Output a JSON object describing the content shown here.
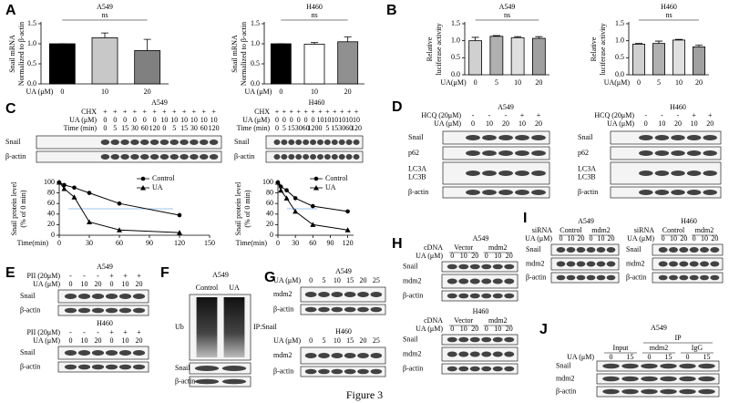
{
  "chart_data": [
    {
      "type": "bar",
      "title": "A549",
      "ylabel": [
        "Snail mRNA",
        "Normalized to β-actin"
      ],
      "xlabel": "UA (μM)",
      "categories": [
        "0",
        "10",
        "20"
      ],
      "values": [
        1.0,
        1.15,
        0.83
      ],
      "errors": [
        0,
        0.12,
        0.28
      ],
      "colors": [
        "#000000",
        "#c8c8c8",
        "#808080"
      ],
      "ylim": [
        0,
        1.5
      ],
      "yticks": [
        {
          "value": 0,
          "label": "0.0"
        },
        {
          "value": 0.5,
          "label": "0.5"
        },
        {
          "value": 1,
          "label": "1.0"
        },
        {
          "value": 1.5,
          "label": "1.5"
        }
      ],
      "annotation": "ns"
    },
    {
      "type": "bar",
      "title": "H460",
      "ylabel": [
        "Snail mRNA",
        "Normalized to β-actin"
      ],
      "xlabel": "UA (μM)",
      "categories": [
        "0",
        "10",
        "20"
      ],
      "values": [
        1.0,
        0.99,
        1.05
      ],
      "errors": [
        0,
        0.04,
        0.12
      ],
      "colors": [
        "#000000",
        "#ffffff",
        "#909090"
      ],
      "ylim": [
        0,
        1.5
      ],
      "yticks": [
        {
          "value": 0,
          "label": "0.0"
        },
        {
          "value": 0.5,
          "label": "0.5"
        },
        {
          "value": 1,
          "label": "1.0"
        },
        {
          "value": 1.5,
          "label": "1.5"
        }
      ],
      "annotation": "ns"
    },
    {
      "type": "bar",
      "title": "A549",
      "ylabel": [
        "Relative",
        "luciferase activity"
      ],
      "xlabel": "UA(μM)",
      "categories": [
        "0",
        "5",
        "10",
        "20"
      ],
      "values": [
        1.0,
        1.13,
        1.09,
        1.07
      ],
      "errors": [
        0.1,
        0.02,
        0.03,
        0.05
      ],
      "colors": [
        "#d0d0d0",
        "#b0b0b0",
        "#e0e0e0",
        "#a0a0a0"
      ],
      "ylim": [
        0,
        1.5
      ],
      "yticks": [
        {
          "value": 0,
          "label": "0.0"
        },
        {
          "value": 0.5,
          "label": "0.5"
        },
        {
          "value": 1,
          "label": "1.0"
        },
        {
          "value": 1.5,
          "label": "1.5"
        }
      ],
      "annotation": "ns"
    },
    {
      "type": "bar",
      "title": "H460",
      "ylabel": [
        "Relative",
        "luciferase activity"
      ],
      "xlabel": "UA(μM)",
      "categories": [
        "0",
        "5",
        "10",
        "20"
      ],
      "values": [
        0.9,
        0.92,
        1.02,
        0.82
      ],
      "errors": [
        0.02,
        0.07,
        0.02,
        0.05
      ],
      "colors": [
        "#d0d0d0",
        "#b0b0b0",
        "#e0e0e0",
        "#a0a0a0"
      ],
      "ylim": [
        0,
        1.5
      ],
      "yticks": [
        {
          "value": 0,
          "label": "0.0"
        },
        {
          "value": 0.5,
          "label": "0.5"
        },
        {
          "value": 1,
          "label": "1.0"
        },
        {
          "value": 1.5,
          "label": "1.5"
        }
      ],
      "annotation": "ns"
    },
    {
      "type": "line",
      "ylabel": [
        "Snail protein level",
        "(% of 0 min)"
      ],
      "xlabel": "Time(min)",
      "x": [
        0,
        5,
        15,
        30,
        60,
        120
      ],
      "series": [
        {
          "name": "Control",
          "color": "#000000",
          "marker": "circle",
          "values": [
            100,
            95,
            90,
            80,
            60,
            38
          ]
        },
        {
          "name": "UA",
          "color": "#000000",
          "marker": "triangle",
          "values": [
            100,
            88,
            72,
            25,
            10,
            5
          ]
        }
      ],
      "xlim": [
        0,
        150
      ],
      "xticks": [
        0,
        30,
        60,
        90,
        120,
        150
      ],
      "ylim": [
        0,
        100
      ],
      "yticks": [
        0,
        20,
        40,
        60,
        80,
        100
      ]
    },
    {
      "type": "line",
      "ylabel": [
        "Snail protein level",
        "(% of 0 min)"
      ],
      "xlabel": "Time(min)",
      "x": [
        0,
        5,
        15,
        30,
        60,
        120
      ],
      "series": [
        {
          "name": "Control",
          "color": "#000000",
          "marker": "circle",
          "values": [
            100,
            92,
            85,
            70,
            55,
            45
          ]
        },
        {
          "name": "UA",
          "color": "#000000",
          "marker": "triangle",
          "values": [
            100,
            85,
            70,
            45,
            20,
            10
          ]
        }
      ],
      "xlim": [
        0,
        130
      ],
      "xticks": [
        0,
        30,
        60,
        90,
        120
      ],
      "ylim": [
        0,
        100
      ],
      "yticks": [
        0,
        20,
        40,
        60,
        80,
        100
      ]
    }
  ],
  "figure": {
    "letters": [
      "A",
      "B",
      "C",
      "D",
      "E",
      "F",
      "G",
      "H",
      "I",
      "J"
    ],
    "caption": "Figure 3",
    "blots": [
      {
        "title": "A549",
        "conds": [
          {
            "label": "CHX",
            "lanes": [
              "+",
              "+",
              "+",
              "+",
              "+",
              "+",
              "+",
              "+",
              "+",
              "+",
              "+",
              "+"
            ]
          },
          {
            "label": "UA (μM)",
            "lanes": [
              "0",
              "0",
              "0",
              "0",
              "0",
              "0",
              "10",
              "10",
              "10",
              "10",
              "10",
              "10"
            ]
          },
          {
            "label": "Time (min)",
            "lanes": [
              "0",
              "5",
              "15",
              "30",
              "60",
              "120",
              "0",
              "5",
              "15",
              "30",
              "60",
              "120"
            ]
          }
        ],
        "bands": [
          "Snail",
          "β-actin"
        ]
      },
      {
        "title": "H460",
        "conds": [
          {
            "label": "CHX",
            "lanes": [
              "+",
              "+",
              "+",
              "+",
              "+",
              "+",
              "+",
              "+",
              "+",
              "+",
              "+",
              "+"
            ]
          },
          {
            "label": "UA (μM)",
            "lanes": [
              "0",
              "0",
              "0",
              "0",
              "0",
              "0",
              "10",
              "10",
              "10",
              "10",
              "10",
              "10"
            ]
          },
          {
            "label": "Time (min)",
            "lanes": [
              "0",
              "5",
              "15",
              "30",
              "60",
              "120",
              "0",
              "5",
              "15",
              "30",
              "60",
              "120"
            ]
          }
        ],
        "bands": [
          "Snail",
          "β-actin"
        ]
      },
      {
        "title": "A549",
        "conds": [
          {
            "label": "HCQ (20μM)",
            "lanes": [
              "-",
              "-",
              "-",
              "+",
              "+"
            ]
          },
          {
            "label": "UA (μM)",
            "lanes": [
              "0",
              "10",
              "20",
              "10",
              "20"
            ]
          }
        ],
        "bands": [
          "Snail",
          "p62",
          [
            "LC3A",
            "LC3B"
          ],
          "β-actin"
        ]
      },
      {
        "title": "H460",
        "conds": [
          {
            "label": "HCQ (20μM)",
            "lanes": [
              "-",
              "-",
              "-",
              "+",
              "+"
            ]
          },
          {
            "label": "UA (μM)",
            "lanes": [
              "0",
              "10",
              "20",
              "10",
              "20"
            ]
          }
        ],
        "bands": [
          "Snail",
          "p62",
          [
            "LC3A",
            "LC3B"
          ],
          "β-actin"
        ]
      },
      {
        "title": "A549",
        "conds": [
          {
            "label": "PII (20μM)",
            "lanes": [
              "-",
              "-",
              "-",
              "+",
              "+",
              "+"
            ]
          },
          {
            "label": "UA (μM)",
            "lanes": [
              "0",
              "10",
              "20",
              "0",
              "10",
              "20"
            ]
          }
        ],
        "bands": [
          "Snail",
          "β-actin"
        ]
      },
      {
        "title": "H460",
        "conds": [
          {
            "label": "PII (20μM)",
            "lanes": [
              "-",
              "-",
              "-",
              "+",
              "+",
              "+"
            ]
          },
          {
            "label": "UA (μM)",
            "lanes": [
              "0",
              "10",
              "20",
              "0",
              "10",
              "20"
            ]
          }
        ],
        "bands": [
          "Snail",
          "β-actin"
        ]
      },
      {
        "title": "A549",
        "conds": [
          {
            "lanes": [
              "Control",
              "UA"
            ]
          }
        ],
        "bands": [
          "Ub",
          "Snail",
          "β-actin"
        ],
        "side": "IP:Snail"
      },
      {
        "title": "A549",
        "conds": [
          {
            "label": "UA (μM)",
            "lanes": [
              "0",
              "5",
              "10",
              "15",
              "20",
              "25"
            ]
          }
        ],
        "bands": [
          "mdm2",
          "β-actin"
        ]
      },
      {
        "title": "H460",
        "conds": [
          {
            "label": "UA (μM)",
            "lanes": [
              "0",
              "5",
              "10",
              "15",
              "20",
              "25"
            ]
          }
        ],
        "bands": [
          "mdm2",
          "β-actin"
        ]
      },
      {
        "title": "A549",
        "conds": [
          {
            "label": "cDNA",
            "groups": [
              "Vector",
              "mdm2"
            ]
          },
          {
            "label": "UA (μM)",
            "lanes": [
              "0",
              "10",
              "20",
              "0",
              "10",
              "20"
            ]
          }
        ],
        "bands": [
          "Snail",
          "mdm2",
          "β-actin"
        ]
      },
      {
        "title": "H460",
        "conds": [
          {
            "label": "cDNA",
            "groups": [
              "Vector",
              "mdm2"
            ]
          },
          {
            "label": "UA (μM)",
            "lanes": [
              "0",
              "10",
              "20",
              "0",
              "10",
              "20"
            ]
          }
        ],
        "bands": [
          "Snail",
          "mdm2",
          "β-actin"
        ]
      },
      {
        "title": "A549",
        "conds": [
          {
            "label": "siRNA",
            "groups": [
              "Control",
              "mdm2"
            ]
          },
          {
            "label": "UA (μM)",
            "lanes": [
              "0",
              "10",
              "20",
              "0",
              "10",
              "20"
            ]
          }
        ],
        "bands": [
          "Snail",
          "mdm2",
          "β-actin"
        ]
      },
      {
        "title": "H460",
        "conds": [
          {
            "label": "siRNA",
            "groups": [
              "Control",
              "mdm2"
            ]
          },
          {
            "label": "UA (μM)",
            "lanes": [
              "0",
              "10",
              "20",
              "0",
              "10",
              "20"
            ]
          }
        ],
        "bands": [
          "Snail",
          "mdm2",
          "β-actin"
        ]
      },
      {
        "title": "A549",
        "super": "IP",
        "conds": [
          {
            "groups": [
              "Input",
              "mdm2",
              "IgG"
            ]
          },
          {
            "label": "UA (μM)",
            "lanes": [
              "0",
              "15",
              "0",
              "15",
              "0",
              "15"
            ]
          }
        ],
        "bands": [
          "Snail",
          "mdm2",
          "β-actin"
        ]
      }
    ]
  }
}
